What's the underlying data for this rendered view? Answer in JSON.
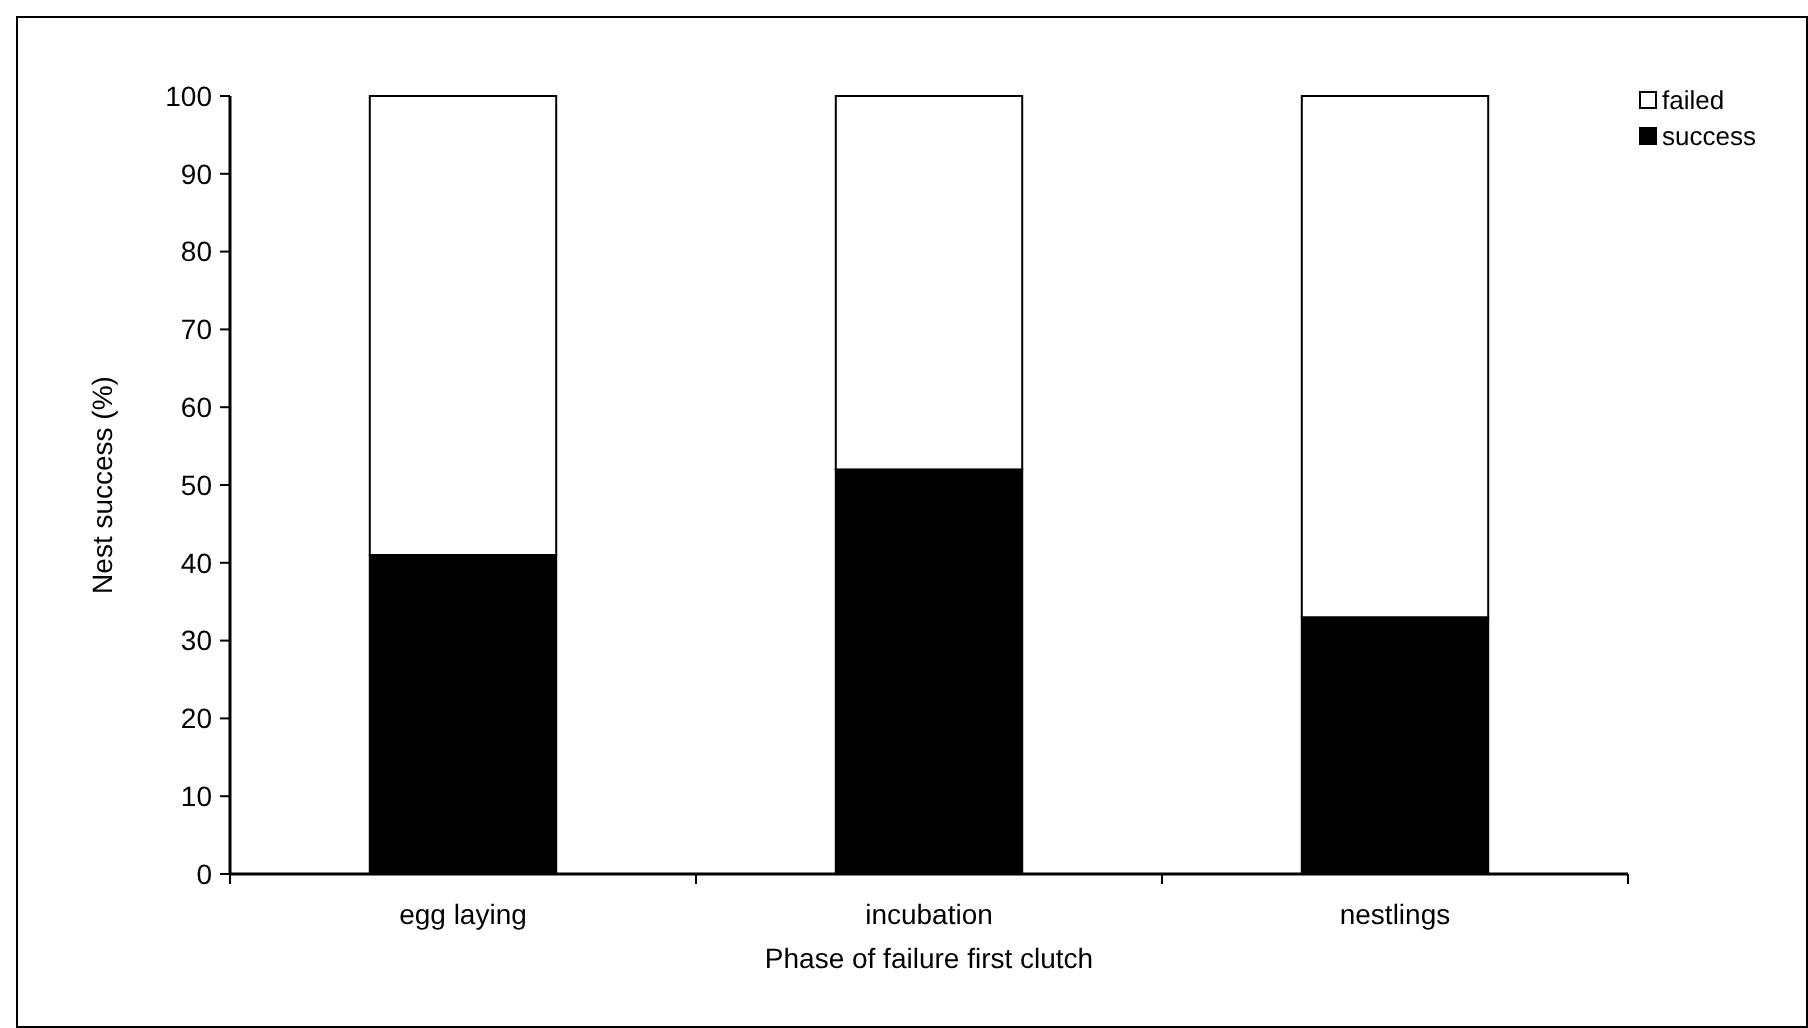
{
  "chart_data": {
    "type": "bar",
    "stacked": true,
    "xlabel": "Phase of failure first clutch",
    "ylabel": "Nest success (%)",
    "categories": [
      "egg laying",
      "incubation",
      "nestlings"
    ],
    "series": [
      {
        "name": "success",
        "color": "#000000",
        "values": [
          41,
          52,
          33
        ]
      },
      {
        "name": "failed",
        "color": "#ffffff",
        "values": [
          59,
          48,
          67
        ]
      }
    ],
    "ylim": [
      0,
      100
    ],
    "yticks": [
      0,
      10,
      20,
      30,
      40,
      50,
      60,
      70,
      80,
      90,
      100
    ],
    "legend": "top right"
  }
}
